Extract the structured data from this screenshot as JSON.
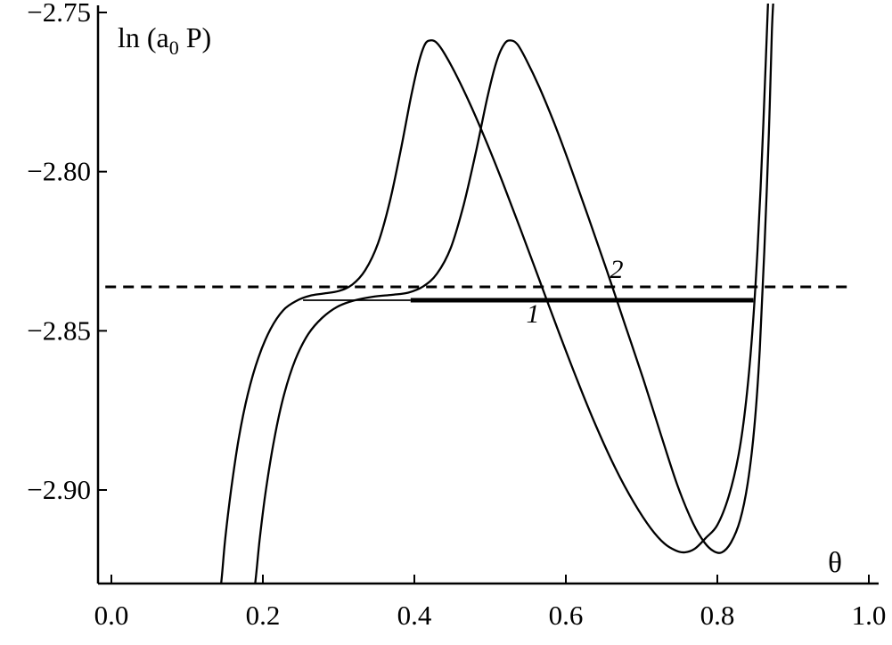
{
  "figure": {
    "background": "#ffffff",
    "foreground": "#000000"
  },
  "axis": {
    "ylabel_pre": "ln (a",
    "ylabel_sub": "0",
    "ylabel_post": " P)",
    "xlabel": "θ"
  },
  "chart_data": {
    "type": "line",
    "title": "",
    "xlabel": "θ",
    "ylabel": "ln (a0 P)",
    "xlim": [
      0.0,
      1.0
    ],
    "ylim": [
      -2.93,
      -2.75
    ],
    "grid": false,
    "legend": "none",
    "color": "#000000",
    "x_ticks": [
      {
        "v": 0.0,
        "label": "0.0"
      },
      {
        "v": 0.2,
        "label": "0.2"
      },
      {
        "v": 0.4,
        "label": "0.4"
      },
      {
        "v": 0.6,
        "label": "0.6"
      },
      {
        "v": 0.8,
        "label": "0.8"
      },
      {
        "v": 1.0,
        "label": "1.0"
      }
    ],
    "y_ticks": [
      {
        "v": -2.75,
        "label": "−2.75"
      },
      {
        "v": -2.8,
        "label": "−2.80"
      },
      {
        "v": -2.85,
        "label": "−2.85"
      },
      {
        "v": -2.9,
        "label": "−2.90"
      }
    ],
    "series": [
      {
        "name": "dashed-equilibrium-line-2",
        "style": "dashed",
        "width": 3,
        "dash": [
          12,
          8
        ],
        "points": [
          [
            -0.008,
            -2.8362
          ],
          [
            0.98,
            -2.8362
          ]
        ]
      },
      {
        "name": "tie-line-1-thin-segment",
        "style": "solid",
        "width": 1.8,
        "points": [
          [
            0.253,
            -2.8404
          ],
          [
            0.395,
            -2.8404
          ]
        ]
      },
      {
        "name": "tie-line-1-thick-segment",
        "style": "solid",
        "width": 5,
        "points": [
          [
            0.395,
            -2.8404
          ],
          [
            0.8475,
            -2.8404
          ]
        ]
      },
      {
        "name": "isotherm-curve-1",
        "style": "solid",
        "width": 2.3,
        "points": [
          [
            0.138,
            -2.94
          ],
          [
            0.145,
            -2.929
          ],
          [
            0.15,
            -2.916
          ],
          [
            0.158,
            -2.9
          ],
          [
            0.168,
            -2.884
          ],
          [
            0.18,
            -2.87
          ],
          [
            0.194,
            -2.8585
          ],
          [
            0.21,
            -2.8495
          ],
          [
            0.227,
            -2.8435
          ],
          [
            0.245,
            -2.8405
          ],
          [
            0.262,
            -2.839
          ],
          [
            0.28,
            -2.8383
          ],
          [
            0.3,
            -2.8375
          ],
          [
            0.318,
            -2.8355
          ],
          [
            0.335,
            -2.831
          ],
          [
            0.352,
            -2.8225
          ],
          [
            0.368,
            -2.809
          ],
          [
            0.383,
            -2.792
          ],
          [
            0.396,
            -2.776
          ],
          [
            0.406,
            -2.7655
          ],
          [
            0.414,
            -2.76
          ],
          [
            0.421,
            -2.7588
          ],
          [
            0.429,
            -2.7594
          ],
          [
            0.44,
            -2.763
          ],
          [
            0.456,
            -2.77
          ],
          [
            0.474,
            -2.779
          ],
          [
            0.494,
            -2.79
          ],
          [
            0.516,
            -2.803
          ],
          [
            0.54,
            -2.818
          ],
          [
            0.565,
            -2.834
          ],
          [
            0.59,
            -2.85
          ],
          [
            0.615,
            -2.8655
          ],
          [
            0.64,
            -2.88
          ],
          [
            0.665,
            -2.893
          ],
          [
            0.69,
            -2.904
          ],
          [
            0.712,
            -2.912
          ],
          [
            0.73,
            -2.9168
          ],
          [
            0.745,
            -2.919
          ],
          [
            0.757,
            -2.9196
          ],
          [
            0.77,
            -2.9185
          ],
          [
            0.785,
            -2.915
          ],
          [
            0.8,
            -2.911
          ],
          [
            0.815,
            -2.902
          ],
          [
            0.828,
            -2.889
          ],
          [
            0.838,
            -2.872
          ],
          [
            0.846,
            -2.851
          ],
          [
            0.853,
            -2.825
          ],
          [
            0.859,
            -2.795
          ],
          [
            0.864,
            -2.765
          ],
          [
            0.867,
            -2.746
          ]
        ]
      },
      {
        "name": "isotherm-curve-2",
        "style": "solid",
        "width": 2.3,
        "points": [
          [
            0.183,
            -2.94
          ],
          [
            0.19,
            -2.929
          ],
          [
            0.196,
            -2.915
          ],
          [
            0.204,
            -2.9
          ],
          [
            0.215,
            -2.884
          ],
          [
            0.228,
            -2.87
          ],
          [
            0.243,
            -2.859
          ],
          [
            0.26,
            -2.851
          ],
          [
            0.278,
            -2.846
          ],
          [
            0.298,
            -2.8425
          ],
          [
            0.32,
            -2.8405
          ],
          [
            0.345,
            -2.8393
          ],
          [
            0.37,
            -2.8387
          ],
          [
            0.392,
            -2.838
          ],
          [
            0.412,
            -2.836
          ],
          [
            0.43,
            -2.832
          ],
          [
            0.448,
            -2.824
          ],
          [
            0.465,
            -2.8105
          ],
          [
            0.482,
            -2.793
          ],
          [
            0.497,
            -2.776
          ],
          [
            0.509,
            -2.765
          ],
          [
            0.519,
            -2.7598
          ],
          [
            0.527,
            -2.7588
          ],
          [
            0.536,
            -2.76
          ],
          [
            0.548,
            -2.765
          ],
          [
            0.565,
            -2.7735
          ],
          [
            0.585,
            -2.785
          ],
          [
            0.607,
            -2.799
          ],
          [
            0.63,
            -2.8145
          ],
          [
            0.654,
            -2.831
          ],
          [
            0.678,
            -2.848
          ],
          [
            0.702,
            -2.865
          ],
          [
            0.726,
            -2.883
          ],
          [
            0.748,
            -2.899
          ],
          [
            0.768,
            -2.9105
          ],
          [
            0.783,
            -2.9165
          ],
          [
            0.795,
            -2.9192
          ],
          [
            0.806,
            -2.9196
          ],
          [
            0.818,
            -2.9165
          ],
          [
            0.83,
            -2.9095
          ],
          [
            0.84,
            -2.898
          ],
          [
            0.849,
            -2.88
          ],
          [
            0.856,
            -2.856
          ],
          [
            0.862,
            -2.825
          ],
          [
            0.868,
            -2.788
          ],
          [
            0.872,
            -2.756
          ],
          [
            0.874,
            -2.746
          ]
        ]
      }
    ],
    "annotations": [
      {
        "text": "1",
        "x": 0.5565,
        "y": -2.8474,
        "italic": true
      },
      {
        "text": "2",
        "x": 0.667,
        "y": -2.8334,
        "italic": true
      }
    ]
  }
}
